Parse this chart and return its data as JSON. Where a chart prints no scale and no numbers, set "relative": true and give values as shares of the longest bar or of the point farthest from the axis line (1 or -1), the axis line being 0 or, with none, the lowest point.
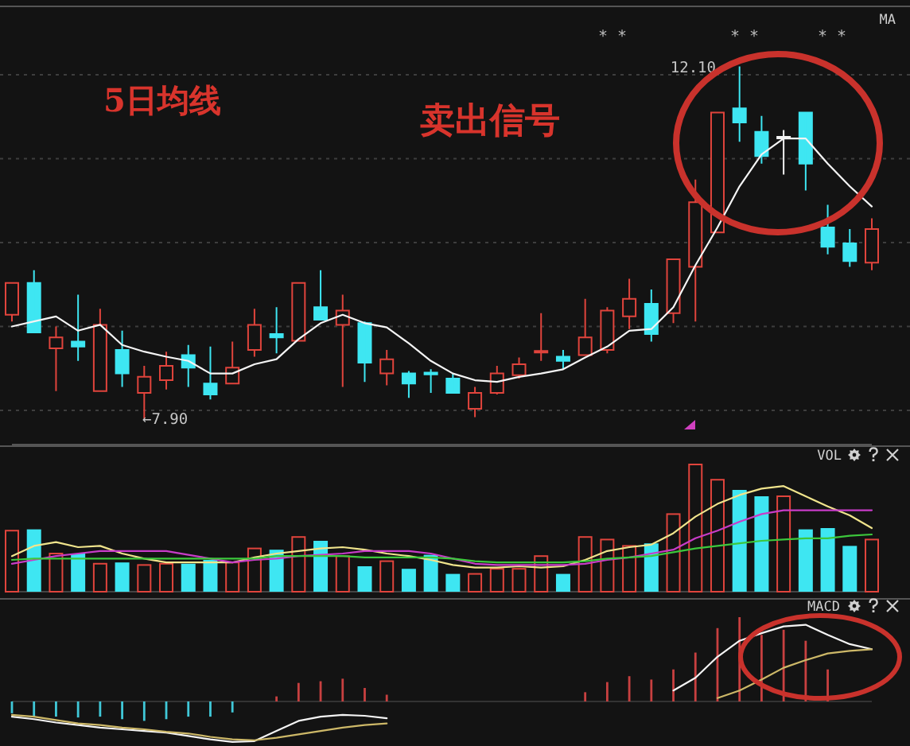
{
  "chart_data": [
    {
      "type": "candlestick",
      "title": "MA",
      "categories": [
        null,
        null,
        null,
        null,
        null,
        null,
        null,
        null,
        null,
        null,
        null,
        null,
        null,
        null,
        null,
        null,
        null,
        null,
        null,
        null,
        null,
        null,
        null,
        null,
        null,
        null,
        null,
        null,
        null,
        null,
        null,
        null,
        null,
        null,
        null,
        null,
        null,
        null,
        null,
        null
      ],
      "ohlc": [
        [
          9.14,
          9.52,
          9.06,
          9.52
        ],
        [
          9.52,
          9.67,
          8.93,
          8.93
        ],
        [
          8.74,
          9.0,
          8.23,
          8.87
        ],
        [
          8.82,
          9.38,
          8.59,
          8.76
        ],
        [
          8.23,
          9.21,
          8.23,
          9.02
        ],
        [
          8.72,
          8.95,
          8.28,
          8.44
        ],
        [
          8.21,
          8.53,
          7.9,
          8.4
        ],
        [
          8.36,
          8.7,
          8.25,
          8.53
        ],
        [
          8.66,
          8.78,
          8.28,
          8.51
        ],
        [
          8.32,
          8.76,
          8.13,
          8.19
        ],
        [
          8.32,
          8.82,
          8.32,
          8.51
        ],
        [
          8.72,
          9.21,
          8.64,
          9.02
        ],
        [
          8.91,
          9.23,
          8.68,
          8.87
        ],
        [
          8.83,
          9.52,
          8.83,
          9.52
        ],
        [
          9.23,
          9.67,
          9.08,
          9.08
        ],
        [
          9.02,
          9.38,
          8.28,
          9.19
        ],
        [
          9.04,
          9.06,
          8.34,
          8.57
        ],
        [
          8.44,
          8.72,
          8.3,
          8.61
        ],
        [
          8.44,
          8.47,
          8.15,
          8.32
        ],
        [
          8.45,
          8.49,
          8.21,
          8.43
        ],
        [
          8.38,
          8.44,
          8.21,
          8.21
        ],
        [
          8.02,
          8.28,
          7.92,
          8.21
        ],
        [
          8.21,
          8.53,
          8.19,
          8.44
        ],
        [
          8.42,
          8.63,
          8.38,
          8.55
        ],
        [
          8.69,
          9.16,
          8.59,
          8.71
        ],
        [
          8.64,
          8.72,
          8.49,
          8.59
        ],
        [
          8.66,
          9.33,
          8.66,
          8.87
        ],
        [
          8.72,
          9.23,
          8.68,
          9.19
        ],
        [
          9.12,
          9.57,
          8.97,
          9.33
        ],
        [
          9.27,
          9.44,
          8.82,
          8.91
        ],
        [
          9.16,
          9.8,
          9.04,
          9.8
        ],
        [
          9.71,
          10.75,
          9.06,
          10.48
        ],
        [
          10.12,
          11.55,
          10.12,
          11.55
        ],
        [
          11.6,
          12.1,
          11.2,
          11.43
        ],
        [
          11.32,
          11.51,
          10.94,
          11.03
        ],
        [
          11.26,
          11.34,
          10.81,
          11.26
        ],
        [
          11.55,
          11.55,
          10.62,
          10.94
        ],
        [
          10.18,
          10.45,
          9.86,
          9.95
        ],
        [
          9.99,
          10.16,
          9.71,
          9.78
        ],
        [
          9.76,
          10.29,
          9.67,
          10.16
        ]
      ],
      "colors": [
        "#e0443c",
        "#3ee6f2",
        "#e0443c",
        "#3ee6f2",
        "#e0443c",
        "#3ee6f2",
        "#e0443c",
        "#e0443c",
        "#3ee6f2",
        "#3ee6f2",
        "#e0443c",
        "#e0443c",
        "#3ee6f2",
        "#e0443c",
        "#3ee6f2",
        "#e0443c",
        "#3ee6f2",
        "#e0443c",
        "#3ee6f2",
        "#3ee6f2",
        "#3ee6f2",
        "#e0443c",
        "#e0443c",
        "#e0443c",
        "#e0443c",
        "#3ee6f2",
        "#e0443c",
        "#e0443c",
        "#e0443c",
        "#3ee6f2",
        "#e0443c",
        "#e0443c",
        "#e0443c",
        "#3ee6f2",
        "#3ee6f2",
        "#f2f2f2",
        "#3ee6f2",
        "#3ee6f2",
        "#3ee6f2",
        "#e0443c"
      ],
      "series": [
        {
          "type": "line",
          "color": "#f4f4f4",
          "values": [
            9.0,
            9.06,
            9.12,
            8.95,
            9.02,
            8.78,
            8.7,
            8.64,
            8.59,
            8.44,
            8.44,
            8.55,
            8.61,
            8.85,
            9.04,
            9.14,
            9.04,
            8.99,
            8.8,
            8.59,
            8.44,
            8.36,
            8.34,
            8.4,
            8.44,
            8.49,
            8.63,
            8.76,
            8.95,
            8.97,
            9.23,
            9.73,
            10.18,
            10.67,
            11.05,
            11.24,
            11.24,
            10.94,
            10.67,
            10.43
          ]
        }
      ],
      "yticks": [
        {
          "value": 8,
          "label": null
        },
        {
          "value": 9,
          "label": null
        },
        {
          "value": 10,
          "label": null
        },
        {
          "value": 11,
          "label": null
        },
        {
          "value": 12,
          "label": null
        }
      ],
      "grid": "y",
      "annotations": [
        "5日均线",
        "卖出信号",
        "* *",
        "* *",
        "* *",
        "12.10",
        "←7.90"
      ]
    },
    {
      "type": "bar",
      "title": "VOL",
      "relative": true,
      "categories": [
        null,
        null,
        null,
        null,
        null,
        null,
        null,
        null,
        null,
        null,
        null,
        null,
        null,
        null,
        null,
        null,
        null,
        null,
        null,
        null,
        null,
        null,
        null,
        null,
        null,
        null,
        null,
        null,
        null,
        null,
        null,
        null,
        null,
        null,
        null,
        null,
        null,
        null,
        null,
        null
      ],
      "series": [
        {
          "values": [
            0.48,
            0.49,
            0.3,
            0.3,
            0.22,
            0.23,
            0.21,
            0.22,
            0.22,
            0.25,
            0.23,
            0.34,
            0.33,
            0.43,
            0.4,
            0.28,
            0.2,
            0.24,
            0.18,
            0.29,
            0.14,
            0.14,
            0.18,
            0.18,
            0.28,
            0.14,
            0.43,
            0.41,
            0.36,
            0.38,
            0.61,
            1,
            0.88,
            0.8,
            0.75,
            0.75,
            0.49,
            0.5,
            0.36,
            0.41
          ],
          "colors": [
            "#e0443c",
            "#3ee6f2",
            "#e0443c",
            "#3ee6f2",
            "#e0443c",
            "#3ee6f2",
            "#e0443c",
            "#e0443c",
            "#3ee6f2",
            "#3ee6f2",
            "#e0443c",
            "#e0443c",
            "#3ee6f2",
            "#e0443c",
            "#3ee6f2",
            "#e0443c",
            "#3ee6f2",
            "#e0443c",
            "#3ee6f2",
            "#3ee6f2",
            "#3ee6f2",
            "#e0443c",
            "#e0443c",
            "#e0443c",
            "#e0443c",
            "#3ee6f2",
            "#e0443c",
            "#e0443c",
            "#e0443c",
            "#3ee6f2",
            "#e0443c",
            "#e0443c",
            "#e0443c",
            "#3ee6f2",
            "#3ee6f2",
            "#e0443c",
            "#3ee6f2",
            "#3ee6f2",
            "#3ee6f2",
            "#e0443c"
          ]
        },
        {
          "type": "line",
          "color": "#f0e48c",
          "values": [
            0.28,
            0.36,
            0.39,
            0.35,
            0.36,
            0.3,
            0.26,
            0.23,
            0.23,
            0.23,
            0.23,
            0.27,
            0.3,
            0.32,
            0.34,
            0.35,
            0.33,
            0.3,
            0.28,
            0.25,
            0.21,
            0.19,
            0.19,
            0.2,
            0.19,
            0.2,
            0.25,
            0.32,
            0.35,
            0.37,
            0.46,
            0.59,
            0.69,
            0.76,
            0.81,
            0.83,
            0.75,
            0.67,
            0.6,
            0.5
          ]
        },
        {
          "type": "line",
          "color": "#c83cc8",
          "values": [
            0.22,
            0.25,
            0.28,
            0.3,
            0.32,
            0.32,
            0.32,
            0.32,
            0.29,
            0.26,
            0.23,
            0.25,
            0.26,
            0.28,
            0.29,
            0.3,
            0.32,
            0.32,
            0.32,
            0.3,
            0.26,
            0.22,
            0.21,
            0.21,
            0.21,
            0.21,
            0.22,
            0.25,
            0.27,
            0.3,
            0.33,
            0.42,
            0.48,
            0.55,
            0.61,
            0.64,
            0.64,
            0.64,
            0.64,
            0.64
          ]
        },
        {
          "type": "line",
          "color": "#3cc83c",
          "values": [
            0.25,
            0.26,
            0.26,
            0.26,
            0.26,
            0.26,
            0.26,
            0.26,
            0.26,
            0.26,
            0.26,
            0.26,
            0.28,
            0.28,
            0.28,
            0.28,
            0.27,
            0.27,
            0.27,
            0.27,
            0.26,
            0.24,
            0.23,
            0.23,
            0.23,
            0.23,
            0.24,
            0.26,
            0.27,
            0.28,
            0.31,
            0.34,
            0.36,
            0.38,
            0.4,
            0.41,
            0.42,
            0.42,
            0.44,
            0.45
          ]
        }
      ]
    },
    {
      "type": "bar",
      "title": "MACD",
      "relative": true,
      "categories": [
        null,
        null,
        null,
        null,
        null,
        null,
        null,
        null,
        null,
        null,
        null,
        null,
        null,
        null,
        null,
        null,
        null,
        null,
        null,
        null,
        null,
        null,
        null,
        null,
        null,
        null,
        null,
        null,
        null,
        null,
        null,
        null,
        null,
        null,
        null,
        null,
        null,
        null,
        null,
        null
      ],
      "series": [
        {
          "values": [
            -0.14,
            -0.18,
            -0.18,
            -0.19,
            -0.18,
            -0.21,
            -0.23,
            -0.21,
            -0.18,
            -0.18,
            -0.13,
            0,
            0.06,
            0.22,
            0.24,
            0.27,
            0.16,
            0.08,
            null,
            null,
            null,
            null,
            null,
            null,
            null,
            null,
            0.11,
            0.23,
            0.3,
            0.26,
            0.38,
            0.58,
            0.87,
            1,
            0.79,
            0.85,
            0.72,
            0.38,
            null,
            null
          ],
          "colors": [
            "#40c8d8",
            "#40c8d8",
            "#40c8d8",
            "#40c8d8",
            "#40c8d8",
            "#40c8d8",
            "#40c8d8",
            "#40c8d8",
            "#40c8d8",
            "#40c8d8",
            "#40c8d8",
            "#c84040",
            "#c84040",
            "#c84040",
            "#c84040",
            "#c84040",
            "#c84040",
            "#c84040",
            null,
            null,
            null,
            null,
            null,
            null,
            null,
            null,
            "#c84040",
            "#c84040",
            "#c84040",
            "#c84040",
            "#c84040",
            "#c84040",
            "#c84040",
            "#c84040",
            "#c84040",
            "#c84040",
            "#c84040",
            "#c84040",
            null,
            null
          ]
        },
        {
          "type": "line",
          "color": "#f4f4f4",
          "values": [
            -0.18,
            -0.21,
            -0.25,
            -0.28,
            -0.31,
            -0.33,
            -0.35,
            -0.37,
            -0.41,
            -0.45,
            -0.48,
            -0.47,
            -0.35,
            -0.23,
            -0.18,
            -0.16,
            -0.17,
            -0.2,
            null,
            null,
            null,
            null,
            null,
            null,
            null,
            null,
            null,
            null,
            null,
            null,
            0.13,
            0.28,
            0.53,
            0.72,
            0.81,
            0.89,
            0.91,
            0.79,
            0.68,
            0.62
          ]
        },
        {
          "type": "line",
          "color": "#cdb868",
          "values": [
            -0.16,
            -0.18,
            -0.22,
            -0.26,
            -0.28,
            -0.31,
            -0.33,
            -0.36,
            -0.38,
            -0.42,
            -0.45,
            -0.46,
            -0.43,
            -0.39,
            -0.35,
            -0.31,
            -0.28,
            -0.26,
            null,
            null,
            null,
            null,
            null,
            null,
            null,
            null,
            null,
            null,
            null,
            null,
            null,
            null,
            0.04,
            0.13,
            0.26,
            0.4,
            0.49,
            0.57,
            0.6,
            0.62
          ]
        }
      ]
    }
  ]
}
